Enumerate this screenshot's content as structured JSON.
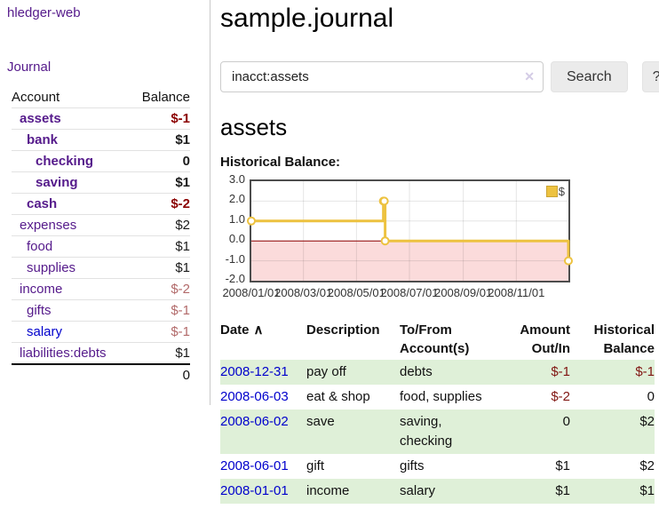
{
  "sidebar": {
    "brand": "hledger-web",
    "nav": {
      "journal": "Journal"
    },
    "accounts_table": {
      "account_header": "Account",
      "balance_header": "Balance",
      "rows": [
        {
          "name": "assets",
          "depth": 1,
          "bold": true,
          "balance": "$-1",
          "balance_style": "neg-strong"
        },
        {
          "name": "bank",
          "depth": 2,
          "bold": true,
          "balance": "$1",
          "balance_style": ""
        },
        {
          "name": "checking",
          "depth": 3,
          "bold": true,
          "balance": "0",
          "balance_style": ""
        },
        {
          "name": "saving",
          "depth": 3,
          "bold": true,
          "balance": "$1",
          "balance_style": ""
        },
        {
          "name": "cash",
          "depth": 2,
          "bold": true,
          "balance": "$-2",
          "balance_style": "neg-strong"
        },
        {
          "name": "expenses",
          "depth": 1,
          "bold": false,
          "balance": "$2",
          "balance_style": ""
        },
        {
          "name": "food",
          "depth": 2,
          "bold": false,
          "balance": "$1",
          "balance_style": ""
        },
        {
          "name": "supplies",
          "depth": 2,
          "bold": false,
          "balance": "$1",
          "balance_style": ""
        },
        {
          "name": "income",
          "depth": 1,
          "bold": false,
          "balance": "$-2",
          "balance_style": "neg-faded"
        },
        {
          "name": "gifts",
          "depth": 2,
          "bold": false,
          "balance": "$-1",
          "balance_style": "neg-faded"
        },
        {
          "name": "salary",
          "depth": 2,
          "bold": false,
          "balance": "$-1",
          "balance_style": "neg-faded",
          "link_style": "unvisited"
        },
        {
          "name": "liabilities:debts",
          "depth": 1,
          "bold": false,
          "balance": "$1",
          "balance_style": ""
        }
      ],
      "total": "0"
    }
  },
  "main": {
    "title": "sample.journal",
    "search": {
      "value": "inacct:assets",
      "clear_icon": "✕",
      "search_button": "Search",
      "help_button": "?"
    },
    "account_heading": "assets",
    "chart_heading": "Historical Balance:"
  },
  "chart_data": {
    "type": "line",
    "step": true,
    "title": "Historical Balance:",
    "legend": {
      "label": "$",
      "position": "top-right"
    },
    "series": [
      {
        "name": "$",
        "color": "#edc240",
        "points": [
          {
            "date": "2008-01-01",
            "value": 1
          },
          {
            "date": "2008-06-01",
            "value": 2
          },
          {
            "date": "2008-06-02",
            "value": 2
          },
          {
            "date": "2008-06-03",
            "value": 0
          },
          {
            "date": "2008-12-31",
            "value": -1
          }
        ]
      }
    ],
    "x_domain": [
      "2008-01-01",
      "2008-12-31"
    ],
    "ylim": [
      -2,
      3
    ],
    "y_ticks": [
      {
        "label": "3.0",
        "value": 3
      },
      {
        "label": "2.0",
        "value": 2
      },
      {
        "label": "1.0",
        "value": 1
      },
      {
        "label": "0.0",
        "value": 0
      },
      {
        "label": "-1.0",
        "value": -1
      },
      {
        "label": "-2.0",
        "value": -2
      }
    ],
    "x_ticks": [
      {
        "label": "2008/01/01",
        "date": "2008-01-01"
      },
      {
        "label": "2008/03/01",
        "date": "2008-03-01"
      },
      {
        "label": "2008/05/01",
        "date": "2008-05-01"
      },
      {
        "label": "2008/07/01",
        "date": "2008-07-01"
      },
      {
        "label": "2008/09/01",
        "date": "2008-09-01"
      },
      {
        "label": "2008/11/01",
        "date": "2008-11-01"
      }
    ],
    "grid": true,
    "negative_fill": "#fbdbdb",
    "zero_line_color": "#8b0000",
    "grid_color": "rgba(0,0,0,0.10)",
    "border_color": "#4d4d4d"
  },
  "transactions": {
    "headers": {
      "date": "Date",
      "sort_icon": "∧",
      "description": "Description",
      "accounts": "To/From Account(s)",
      "amount": "Amount Out/In",
      "balance": "Historical Balance"
    },
    "rows": [
      {
        "date": "2008-12-31",
        "description": "pay off",
        "accounts": "debts",
        "amount": "$-1",
        "amount_negative": true,
        "balance": "$-1",
        "balance_negative": true
      },
      {
        "date": "2008-06-03",
        "description": "eat & shop",
        "accounts": "food, supplies",
        "amount": "$-2",
        "amount_negative": true,
        "balance": "0",
        "balance_negative": false
      },
      {
        "date": "2008-06-02",
        "description": "save",
        "accounts": "saving, checking",
        "amount": "0",
        "amount_negative": false,
        "balance": "$2",
        "balance_negative": false
      },
      {
        "date": "2008-06-01",
        "description": "gift",
        "accounts": "gifts",
        "amount": "$1",
        "amount_negative": false,
        "balance": "$2",
        "balance_negative": false
      },
      {
        "date": "2008-01-01",
        "description": "income",
        "accounts": "salary",
        "amount": "$1",
        "amount_negative": false,
        "balance": "$1",
        "balance_negative": false
      }
    ]
  }
}
